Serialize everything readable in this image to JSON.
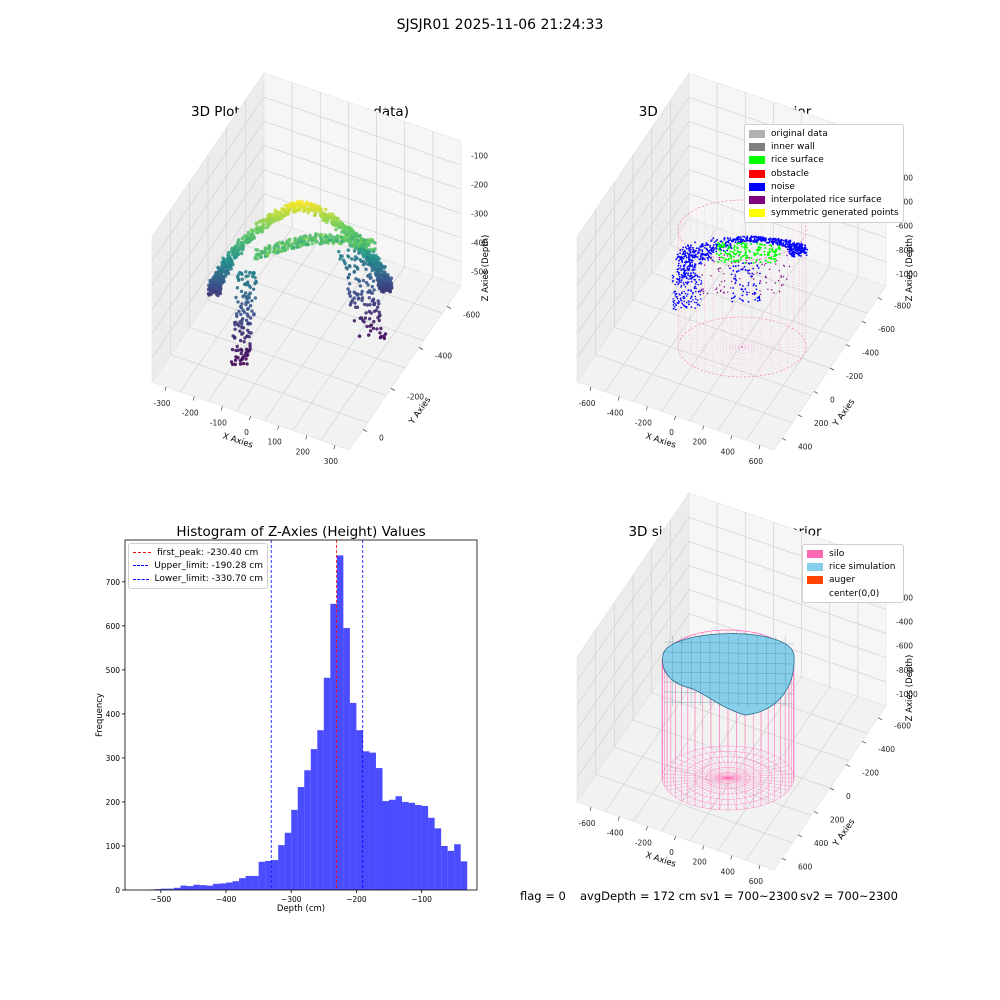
{
  "suptitle": "SJSJR01 2025-11-06 21:24:33",
  "colors": {
    "raw_colormap": [
      "#440154",
      "#3b528b",
      "#21918c",
      "#5ec962",
      "#fde725"
    ],
    "legend_colors": {
      "original data": "#b0b0b0",
      "inner wall": "#808080",
      "rice surface": "#00ff00",
      "obstacle": "#ff0000",
      "noise": "#0000ff",
      "interpolated rice surface": "#800080",
      "symmetric generated points": "#ffff00",
      "silo": "#ff69b4",
      "rice simulation": "#87ceeb",
      "auger": "#ff4500"
    },
    "histogram_bars": "#0000ff",
    "first_peak_line": "#ff0000",
    "limit_lines": "#0000ff"
  },
  "chart_data": [
    {
      "type": "scatter",
      "subtype": "3d-scatter",
      "title": "3D Plot of Silo Interior(row data)",
      "xlabel": "X Axies",
      "ylabel": "Y Axies",
      "zlabel": "Z Axies (Depth)",
      "x_ticks": [
        "-300",
        "-200",
        "-100",
        "0",
        "100",
        "200",
        "300"
      ],
      "y_ticks": [
        "0",
        "-200",
        "-400",
        "-600"
      ],
      "z_ticks": [
        "-100",
        "-200",
        "-300",
        "-400",
        "-500"
      ],
      "xlim": [
        -330,
        330
      ],
      "ylim": [
        -680,
        120
      ],
      "zlim": [
        -560,
        -40
      ],
      "colormap": "viridis by depth"
    },
    {
      "type": "scatter",
      "subtype": "3d-scatter",
      "title": "3D classify of Silo Interior",
      "xlabel": "X Axies",
      "ylabel": "Y Axies",
      "zlabel": "Z Axies (Depth)",
      "x_ticks": [
        "-600",
        "-400",
        "-200",
        "0",
        "200",
        "400",
        "600"
      ],
      "y_ticks": [
        "400",
        "200",
        "0",
        "-200",
        "-400",
        "-600",
        "-800"
      ],
      "z_ticks": [
        "0",
        "-200",
        "-400",
        "-600",
        "-800",
        "-1000"
      ],
      "legend_placement": "top-right",
      "legend": [
        "original data",
        "inner wall",
        "rice surface",
        "obstacle",
        "noise",
        "interpolated rice surface",
        "symmetric generated points"
      ]
    },
    {
      "type": "bar",
      "subtype": "histogram",
      "title": "Histogram of Z-Axies (Height) Values",
      "xlabel": "Depth (cm)",
      "ylabel": "Frequency",
      "xlim": [
        -555,
        -15
      ],
      "ylim": [
        0,
        795
      ],
      "x_ticks": [
        -500,
        -400,
        -300,
        -200,
        -100
      ],
      "y_ticks": [
        0,
        100,
        200,
        300,
        400,
        500,
        600,
        700
      ],
      "bin_width": 10,
      "bins": [
        [
          -520,
          -510,
          1
        ],
        [
          -510,
          -500,
          2
        ],
        [
          -500,
          -490,
          3
        ],
        [
          -490,
          -480,
          3
        ],
        [
          -480,
          -470,
          5
        ],
        [
          -470,
          -460,
          10
        ],
        [
          -460,
          -450,
          9
        ],
        [
          -450,
          -440,
          12
        ],
        [
          -440,
          -430,
          11
        ],
        [
          -430,
          -420,
          10
        ],
        [
          -420,
          -410,
          14
        ],
        [
          -410,
          -400,
          15
        ],
        [
          -400,
          -390,
          17
        ],
        [
          -390,
          -380,
          20
        ],
        [
          -380,
          -370,
          27
        ],
        [
          -370,
          -360,
          32
        ],
        [
          -360,
          -350,
          32
        ],
        [
          -350,
          -340,
          64
        ],
        [
          -340,
          -330,
          66
        ],
        [
          -330,
          -320,
          68
        ],
        [
          -320,
          -310,
          102
        ],
        [
          -310,
          -300,
          130
        ],
        [
          -300,
          -290,
          182
        ],
        [
          -290,
          -280,
          234
        ],
        [
          -280,
          -270,
          272
        ],
        [
          -270,
          -260,
          320
        ],
        [
          -260,
          -250,
          363
        ],
        [
          -250,
          -240,
          482
        ],
        [
          -240,
          -230,
          650
        ],
        [
          -230,
          -220,
          760
        ],
        [
          -220,
          -210,
          595
        ],
        [
          -210,
          -200,
          425
        ],
        [
          -200,
          -190,
          363
        ],
        [
          -190,
          -180,
          315
        ],
        [
          -180,
          -170,
          312
        ],
        [
          -170,
          -160,
          277
        ],
        [
          -160,
          -150,
          202
        ],
        [
          -150,
          -140,
          205
        ],
        [
          -140,
          -130,
          213
        ],
        [
          -130,
          -120,
          200
        ],
        [
          -120,
          -110,
          198
        ],
        [
          -110,
          -100,
          193
        ],
        [
          -100,
          -90,
          191
        ],
        [
          -90,
          -80,
          164
        ],
        [
          -80,
          -70,
          140
        ],
        [
          -70,
          -60,
          100
        ],
        [
          -60,
          -50,
          89
        ],
        [
          -50,
          -40,
          104
        ],
        [
          -40,
          -30,
          65
        ]
      ],
      "vlines": [
        {
          "label": "first_peak: -230.40 cm",
          "value": -230.4,
          "color": "#ff0000"
        },
        {
          "label": "Upper_limit: -190.28 cm",
          "value": -190.28,
          "color": "#0000ff"
        },
        {
          "label": "Lower_limit: -330.70 cm",
          "value": -330.7,
          "color": "#0000ff"
        }
      ],
      "legend_placement": "top-left"
    },
    {
      "type": "area",
      "subtype": "3d-surface",
      "title": "3D simulation of Silo Interior",
      "xlabel": "X Axies",
      "ylabel": "Y Axies",
      "zlabel": "Z Axies (Depth)",
      "x_ticks": [
        "-600",
        "-400",
        "-200",
        "0",
        "200",
        "400",
        "600"
      ],
      "y_ticks": [
        "600",
        "400",
        "200",
        "0",
        "-200",
        "-400",
        "-600"
      ],
      "z_ticks": [
        "0",
        "-200",
        "-400",
        "-600",
        "-800",
        "-1000"
      ],
      "legend_placement": "top-right",
      "legend": [
        "silo",
        "rice simulation",
        "auger",
        "center(0,0)"
      ]
    }
  ],
  "info": {
    "flag": "flag = 0",
    "avg": "avgDepth = 172 cm",
    "sv1": "sv1 = 700~2300",
    "sv2": "sv2 = 700~2300"
  }
}
